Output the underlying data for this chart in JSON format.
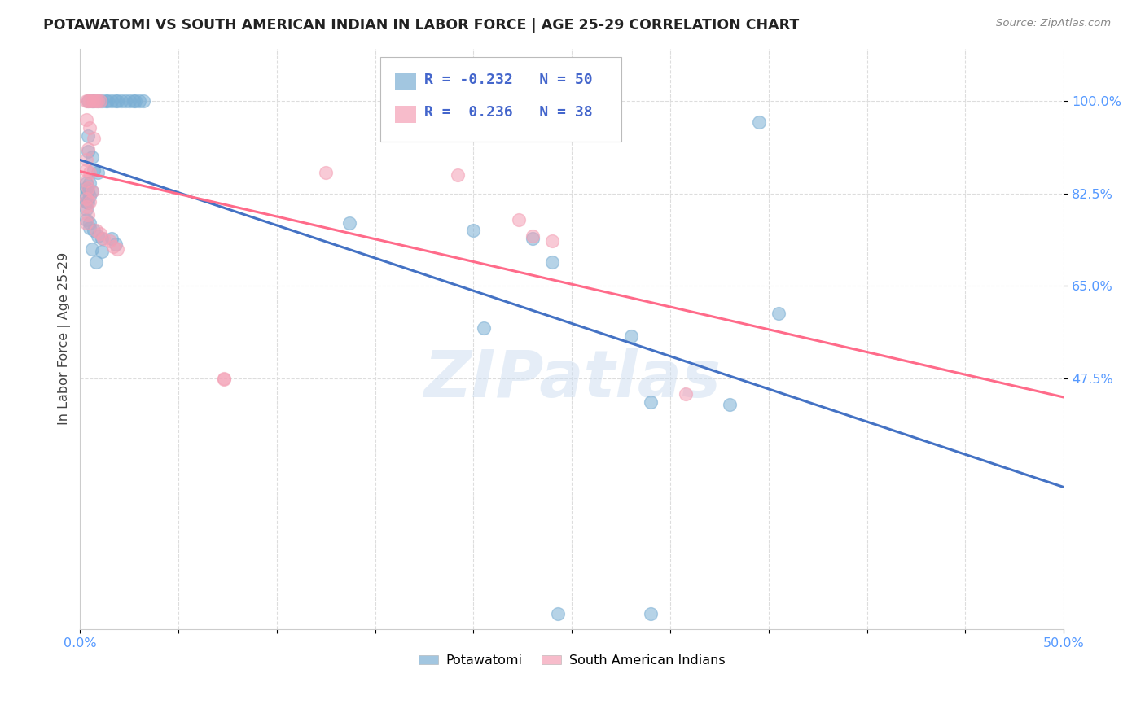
{
  "title": "POTAWATOMI VS SOUTH AMERICAN INDIAN IN LABOR FORCE | AGE 25-29 CORRELATION CHART",
  "source": "Source: ZipAtlas.com",
  "ylabel": "In Labor Force | Age 25-29",
  "xlim": [
    0.0,
    0.5
  ],
  "ylim": [
    0.0,
    1.1
  ],
  "yticks": [
    0.475,
    0.65,
    0.825,
    1.0
  ],
  "ytick_labels": [
    "47.5%",
    "65.0%",
    "82.5%",
    "100.0%"
  ],
  "xtick_vals": [
    0.0,
    0.05,
    0.1,
    0.15,
    0.2,
    0.25,
    0.3,
    0.35,
    0.4,
    0.45,
    0.5
  ],
  "xtick_labels": [
    "0.0%",
    "",
    "",
    "",
    "",
    "",
    "",
    "",
    "",
    "",
    "50.0%"
  ],
  "watermark": "ZIPatlas",
  "legend_blue_R": "-0.232",
  "legend_blue_N": "50",
  "legend_pink_R": "0.236",
  "legend_pink_N": "38",
  "blue_color": "#7BAFD4",
  "pink_color": "#F4A0B5",
  "blue_line_color": "#4472C4",
  "pink_line_color": "#FF6B8A",
  "blue_scatter": [
    [
      0.004,
      1.0
    ],
    [
      0.006,
      1.0
    ],
    [
      0.007,
      1.0
    ],
    [
      0.009,
      1.0
    ],
    [
      0.011,
      1.0
    ],
    [
      0.013,
      1.0
    ],
    [
      0.014,
      1.0
    ],
    [
      0.016,
      1.0
    ],
    [
      0.018,
      1.0
    ],
    [
      0.019,
      1.0
    ],
    [
      0.021,
      1.0
    ],
    [
      0.023,
      1.0
    ],
    [
      0.025,
      1.0
    ],
    [
      0.027,
      1.0
    ],
    [
      0.028,
      1.0
    ],
    [
      0.03,
      1.0
    ],
    [
      0.032,
      1.0
    ],
    [
      0.004,
      0.935
    ],
    [
      0.004,
      0.905
    ],
    [
      0.006,
      0.895
    ],
    [
      0.007,
      0.87
    ],
    [
      0.009,
      0.865
    ],
    [
      0.003,
      0.845
    ],
    [
      0.005,
      0.845
    ],
    [
      0.003,
      0.835
    ],
    [
      0.004,
      0.83
    ],
    [
      0.006,
      0.83
    ],
    [
      0.003,
      0.82
    ],
    [
      0.005,
      0.82
    ],
    [
      0.003,
      0.81
    ],
    [
      0.004,
      0.808
    ],
    [
      0.003,
      0.795
    ],
    [
      0.003,
      0.775
    ],
    [
      0.005,
      0.77
    ],
    [
      0.005,
      0.76
    ],
    [
      0.007,
      0.755
    ],
    [
      0.009,
      0.745
    ],
    [
      0.011,
      0.74
    ],
    [
      0.006,
      0.72
    ],
    [
      0.011,
      0.715
    ],
    [
      0.008,
      0.695
    ],
    [
      0.016,
      0.74
    ],
    [
      0.018,
      0.73
    ],
    [
      0.137,
      0.77
    ],
    [
      0.2,
      0.755
    ],
    [
      0.23,
      0.74
    ],
    [
      0.24,
      0.695
    ],
    [
      0.205,
      0.57
    ],
    [
      0.28,
      0.555
    ],
    [
      0.29,
      0.43
    ],
    [
      0.33,
      0.425
    ],
    [
      0.243,
      0.03
    ],
    [
      0.29,
      0.03
    ],
    [
      0.355,
      0.598
    ],
    [
      0.345,
      0.96
    ]
  ],
  "pink_scatter": [
    [
      0.003,
      1.0
    ],
    [
      0.004,
      1.0
    ],
    [
      0.005,
      1.0
    ],
    [
      0.006,
      1.0
    ],
    [
      0.007,
      1.0
    ],
    [
      0.008,
      1.0
    ],
    [
      0.009,
      1.0
    ],
    [
      0.01,
      1.0
    ],
    [
      0.003,
      0.965
    ],
    [
      0.005,
      0.95
    ],
    [
      0.007,
      0.93
    ],
    [
      0.004,
      0.91
    ],
    [
      0.003,
      0.89
    ],
    [
      0.003,
      0.87
    ],
    [
      0.005,
      0.865
    ],
    [
      0.003,
      0.85
    ],
    [
      0.004,
      0.835
    ],
    [
      0.006,
      0.83
    ],
    [
      0.003,
      0.815
    ],
    [
      0.005,
      0.81
    ],
    [
      0.003,
      0.8
    ],
    [
      0.004,
      0.785
    ],
    [
      0.003,
      0.77
    ],
    [
      0.008,
      0.755
    ],
    [
      0.01,
      0.75
    ],
    [
      0.012,
      0.74
    ],
    [
      0.015,
      0.735
    ],
    [
      0.017,
      0.725
    ],
    [
      0.019,
      0.72
    ],
    [
      0.125,
      0.865
    ],
    [
      0.192,
      0.86
    ],
    [
      0.223,
      0.775
    ],
    [
      0.23,
      0.745
    ],
    [
      0.24,
      0.735
    ],
    [
      0.073,
      0.475
    ],
    [
      0.308,
      0.445
    ],
    [
      0.073,
      0.473
    ]
  ]
}
